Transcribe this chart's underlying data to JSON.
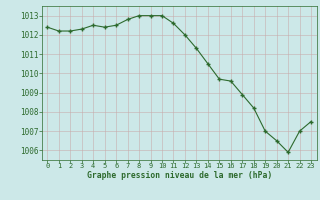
{
  "x": [
    0,
    1,
    2,
    3,
    4,
    5,
    6,
    7,
    8,
    9,
    10,
    11,
    12,
    13,
    14,
    15,
    16,
    17,
    18,
    19,
    20,
    21,
    22,
    23
  ],
  "y": [
    1012.4,
    1012.2,
    1012.2,
    1012.3,
    1012.5,
    1012.4,
    1012.5,
    1012.8,
    1013.0,
    1013.0,
    1013.0,
    1012.6,
    1012.0,
    1011.3,
    1010.5,
    1009.7,
    1009.6,
    1008.9,
    1008.2,
    1007.0,
    1006.5,
    1005.9,
    1007.0,
    1007.5
  ],
  "line_color": "#2d6a2d",
  "marker": "+",
  "bg_color": "#cce8e8",
  "grid_color": "#b0c8c8",
  "xlabel": "Graphe pression niveau de la mer (hPa)",
  "xlabel_color": "#2d6a2d",
  "tick_color": "#2d6a2d",
  "label_color": "#2d6a2d",
  "ylim": [
    1005.5,
    1013.5
  ],
  "yticks": [
    1006,
    1007,
    1008,
    1009,
    1010,
    1011,
    1012,
    1013
  ],
  "xlim": [
    -0.5,
    23.5
  ],
  "xticks": [
    0,
    1,
    2,
    3,
    4,
    5,
    6,
    7,
    8,
    9,
    10,
    11,
    12,
    13,
    14,
    15,
    16,
    17,
    18,
    19,
    20,
    21,
    22,
    23
  ],
  "xtick_labels": [
    "0",
    "1",
    "2",
    "3",
    "4",
    "5",
    "6",
    "7",
    "8",
    "9",
    "10",
    "11",
    "12",
    "13",
    "14",
    "15",
    "16",
    "17",
    "18",
    "19",
    "20",
    "21",
    "22",
    "23"
  ]
}
